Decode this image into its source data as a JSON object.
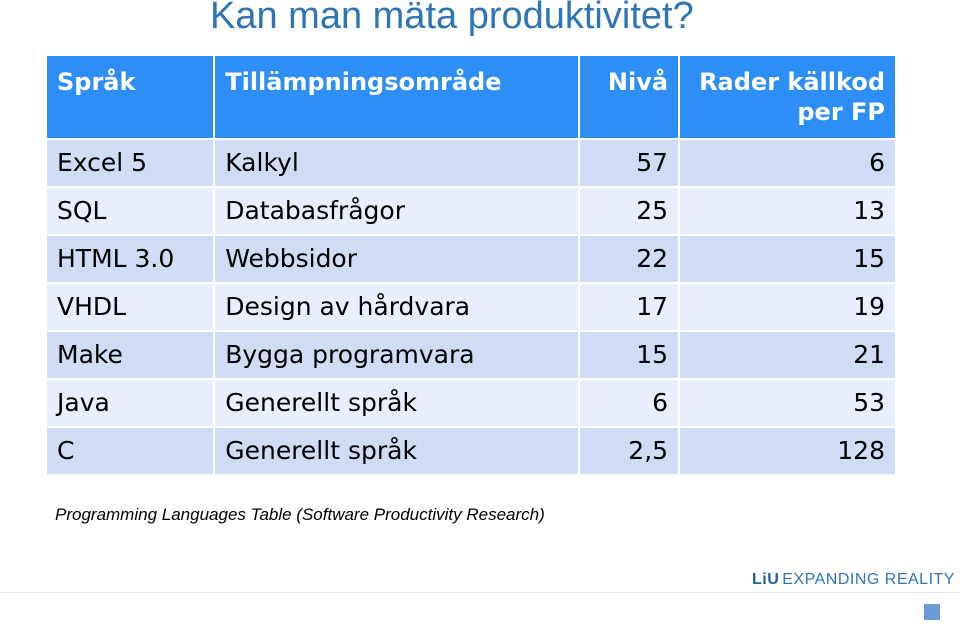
{
  "slide": {
    "title": "Kan man mäta produktivitet?",
    "footnote": "Programming Languages Table (Software Productivity Research)"
  },
  "table": {
    "headers": {
      "language": "Språk",
      "area": "Tillämpningsområde",
      "level": "Nivå",
      "lines_line1": "Rader källkod",
      "lines_line2": "per FP"
    },
    "rows": [
      {
        "language": "Excel 5",
        "area": "Kalkyl",
        "level": "57",
        "lines": "6"
      },
      {
        "language": "SQL",
        "area": "Databasfrågor",
        "level": "25",
        "lines": "13"
      },
      {
        "language": "HTML 3.0",
        "area": "Webbsidor",
        "level": "22",
        "lines": "15"
      },
      {
        "language": "VHDL",
        "area": "Design av hårdvara",
        "level": "17",
        "lines": "19"
      },
      {
        "language": "Make",
        "area": "Bygga programvara",
        "level": "15",
        "lines": "21"
      },
      {
        "language": "Java",
        "area": "Generellt språk",
        "level": "6",
        "lines": "53"
      },
      {
        "language": "C",
        "area": "Generellt språk",
        "level": "2,5",
        "lines": "128"
      }
    ]
  },
  "branding": {
    "logo": "LiU",
    "tagline": "EXPANDING REALITY"
  },
  "colors": {
    "title": "#2e75b6",
    "header_bg": "#2d8ef5",
    "row_odd": "#d0dcf6",
    "row_even": "#e8eefb"
  }
}
